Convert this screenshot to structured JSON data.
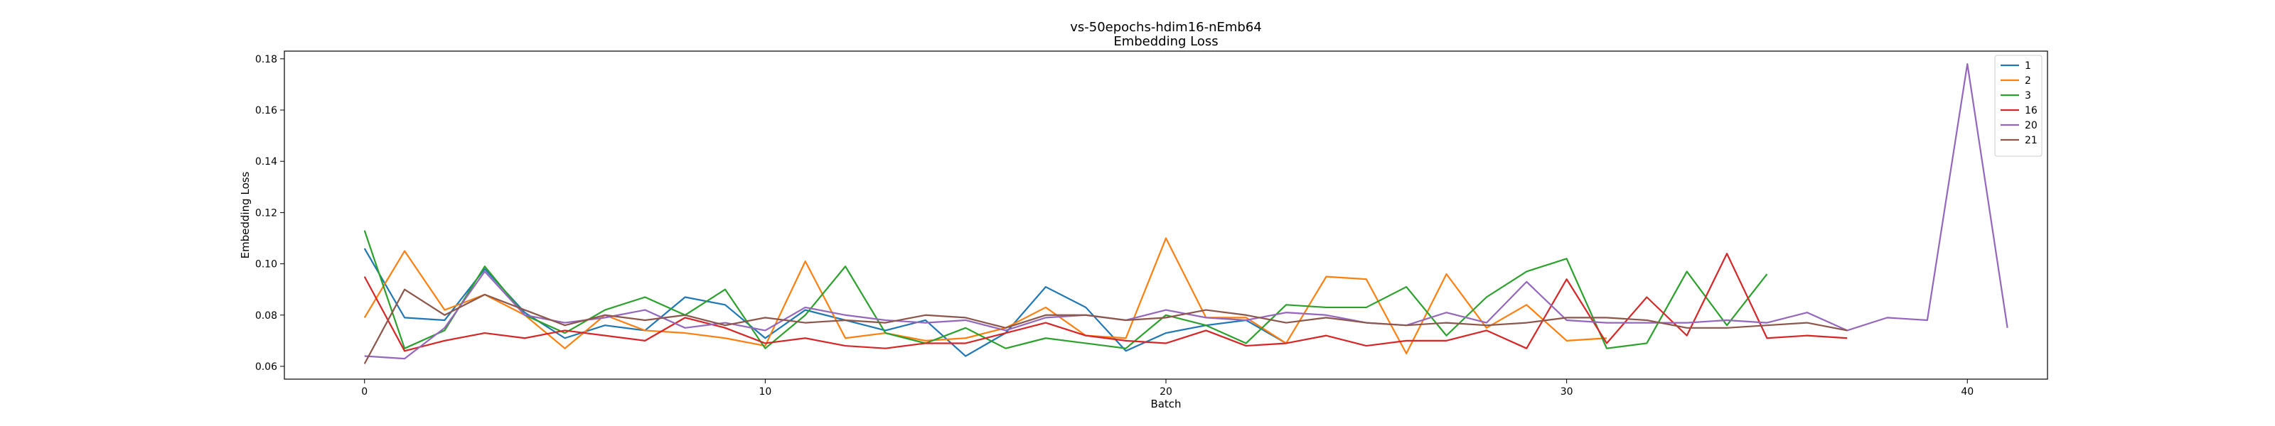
{
  "chart_data": {
    "type": "line",
    "title": "vs-50epochs-hdim16-nEmb64",
    "subtitle": "Embedding Loss",
    "xlabel": "Batch",
    "ylabel": "Embedding Loss",
    "xlim": [
      -2,
      42
    ],
    "ylim": [
      0.055,
      0.183
    ],
    "xticks": [
      0,
      10,
      20,
      30,
      40
    ],
    "yticks": [
      0.06,
      0.08,
      0.1,
      0.12,
      0.14,
      0.16,
      0.18
    ],
    "ytick_labels": [
      "0.06",
      "0.08",
      "0.10",
      "0.12",
      "0.14",
      "0.16",
      "0.18"
    ],
    "grid": false,
    "legend_position": "top-right",
    "series": [
      {
        "name": "1",
        "color": "#1f77b4",
        "values": [
          0.106,
          0.079,
          0.078,
          0.098,
          0.081,
          0.071,
          0.076,
          0.074,
          0.087,
          0.084,
          0.071,
          0.082,
          0.078,
          0.074,
          0.078,
          0.064,
          0.073,
          0.091,
          0.083,
          0.066,
          0.073,
          0.076,
          0.078,
          0.069
        ]
      },
      {
        "name": "2",
        "color": "#ff7f0e",
        "values": [
          0.079,
          0.105,
          0.082,
          0.088,
          0.08,
          0.067,
          0.08,
          0.074,
          0.073,
          0.071,
          0.068,
          0.101,
          0.071,
          0.073,
          0.07,
          0.071,
          0.075,
          0.083,
          0.072,
          0.071,
          0.11,
          0.079,
          0.079,
          0.069,
          0.095,
          0.094,
          0.065,
          0.096,
          0.075,
          0.084,
          0.07,
          0.071
        ]
      },
      {
        "name": "3",
        "color": "#2ca02c",
        "values": [
          0.113,
          0.067,
          0.074,
          0.099,
          0.08,
          0.073,
          0.082,
          0.087,
          0.08,
          0.09,
          0.067,
          0.08,
          0.099,
          0.073,
          0.069,
          0.075,
          0.067,
          0.071,
          0.069,
          0.067,
          0.08,
          0.076,
          0.069,
          0.084,
          0.083,
          0.083,
          0.091,
          0.072,
          0.087,
          0.097,
          0.102,
          0.067,
          0.069,
          0.097,
          0.076,
          0.096
        ]
      },
      {
        "name": "16",
        "color": "#d62728",
        "values": [
          0.095,
          0.066,
          0.07,
          0.073,
          0.071,
          0.074,
          0.072,
          0.07,
          0.079,
          0.075,
          0.069,
          0.071,
          0.068,
          0.067,
          0.069,
          0.069,
          0.073,
          0.077,
          0.072,
          0.07,
          0.069,
          0.074,
          0.068,
          0.069,
          0.072,
          0.068,
          0.07,
          0.07,
          0.074,
          0.067,
          0.094,
          0.069,
          0.087,
          0.072,
          0.104,
          0.071,
          0.072,
          0.071
        ]
      },
      {
        "name": "20",
        "color": "#9467bd",
        "values": [
          0.064,
          0.063,
          0.075,
          0.097,
          0.08,
          0.077,
          0.079,
          0.082,
          0.075,
          0.077,
          0.074,
          0.083,
          0.08,
          0.078,
          0.077,
          0.078,
          0.074,
          0.079,
          0.08,
          0.078,
          0.082,
          0.079,
          0.078,
          0.081,
          0.08,
          0.077,
          0.076,
          0.081,
          0.077,
          0.093,
          0.078,
          0.077,
          0.077,
          0.077,
          0.078,
          0.077,
          0.081,
          0.074,
          0.079,
          0.078,
          0.178,
          0.075
        ]
      },
      {
        "name": "21",
        "color": "#8c564b",
        "values": [
          0.061,
          0.09,
          0.08,
          0.088,
          0.082,
          0.076,
          0.08,
          0.078,
          0.08,
          0.076,
          0.079,
          0.077,
          0.078,
          0.077,
          0.08,
          0.079,
          0.075,
          0.08,
          0.08,
          0.078,
          0.079,
          0.082,
          0.08,
          0.077,
          0.079,
          0.077,
          0.076,
          0.077,
          0.076,
          0.077,
          0.079,
          0.079,
          0.078,
          0.075,
          0.075,
          0.076,
          0.077,
          0.074
        ]
      }
    ]
  }
}
